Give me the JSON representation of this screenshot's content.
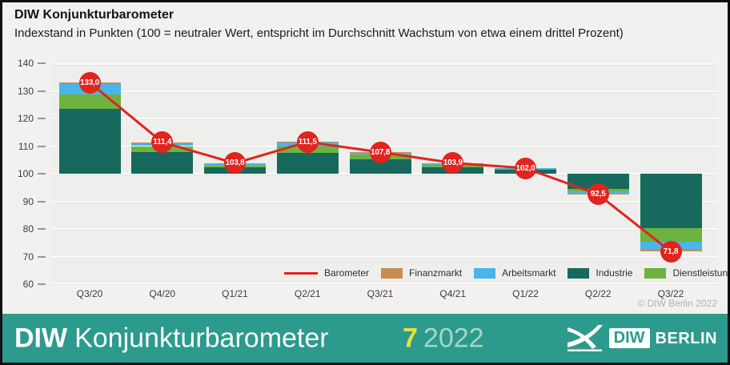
{
  "header": {
    "title": "DIW Konjunkturbarometer",
    "subtitle": "Indexstand in Punkten (100 = neutraler Wert, entspricht im Durchschnitt Wachstum von etwa einem drittel Prozent)"
  },
  "chart_data": {
    "type": "bar",
    "subtype": "stacked-bars-with-line",
    "baseline": 100,
    "ylim": [
      60,
      140
    ],
    "yticks": [
      "140",
      "130",
      "120",
      "110",
      "100",
      "90",
      "80",
      "70",
      "60"
    ],
    "categories": [
      "Q3/20",
      "Q4/20",
      "Q1/21",
      "Q2/21",
      "Q3/21",
      "Q4/21",
      "Q1/22",
      "Q2/22",
      "Q3/22"
    ],
    "series_note": "values are contributions in points relative to the neutral value 100, stacked from baseline",
    "series": [
      {
        "name": "Industrie",
        "color": "#17695e",
        "values": [
          23.6,
          7.8,
          2.2,
          7.6,
          5.3,
          2.3,
          1.4,
          -5.5,
          -19.7
        ]
      },
      {
        "name": "Dienstleistungen",
        "color": "#6db33f",
        "values": [
          5.2,
          2.2,
          0.8,
          2.2,
          1.6,
          0.9,
          0.5,
          -1.0,
          -4.9
        ]
      },
      {
        "name": "Arbeitsmarkt",
        "color": "#4ab5e9",
        "values": [
          3.7,
          1.2,
          0.7,
          1.5,
          0.8,
          0.6,
          0.1,
          -0.8,
          -3.0
        ]
      },
      {
        "name": "Finanzmarkt",
        "color": "#c98d51",
        "values": [
          0.5,
          0.2,
          0.1,
          0.2,
          0.1,
          0.1,
          0.0,
          -0.2,
          -0.6
        ]
      }
    ],
    "line": {
      "name": "Barometer",
      "color": "#e0241f",
      "values": [
        133.0,
        111.4,
        103.8,
        111.5,
        107.8,
        103.9,
        102.0,
        92.5,
        71.8
      ],
      "labels": [
        "133,0",
        "111,4",
        "103,8",
        "111,5",
        "107,8",
        "103,9",
        "102,0",
        "92,5",
        "71,8"
      ]
    },
    "legend": [
      {
        "label": "Barometer",
        "swatch": "line",
        "color": "#e0241f"
      },
      {
        "label": "Finanzmarkt",
        "swatch": "rect",
        "color": "#c98d51"
      },
      {
        "label": "Arbeitsmarkt",
        "swatch": "rect",
        "color": "#4ab5e9"
      },
      {
        "label": "Industrie",
        "swatch": "rect",
        "color": "#17695e"
      },
      {
        "label": "Dienstleistungen",
        "swatch": "rect",
        "color": "#6db33f"
      }
    ],
    "copyright": "© DIW Berlin 2022"
  },
  "footer": {
    "brand_bold": "DIW",
    "brand_rest": "Konjunkturbarometer",
    "issue_number": "7",
    "issue_year": "2022",
    "logo_diw": "DIW",
    "logo_berlin": "BERLIN"
  },
  "colors": {
    "footer_background": "#2c9a8c",
    "issue_number_yellow": "#e8e23a",
    "issue_year_mint": "#a5d6c8",
    "barometer_red": "#e0241f",
    "frame_border": "#0f0f14",
    "plot_background": "#eeeeec",
    "page_background": "#f2f1ef"
  }
}
